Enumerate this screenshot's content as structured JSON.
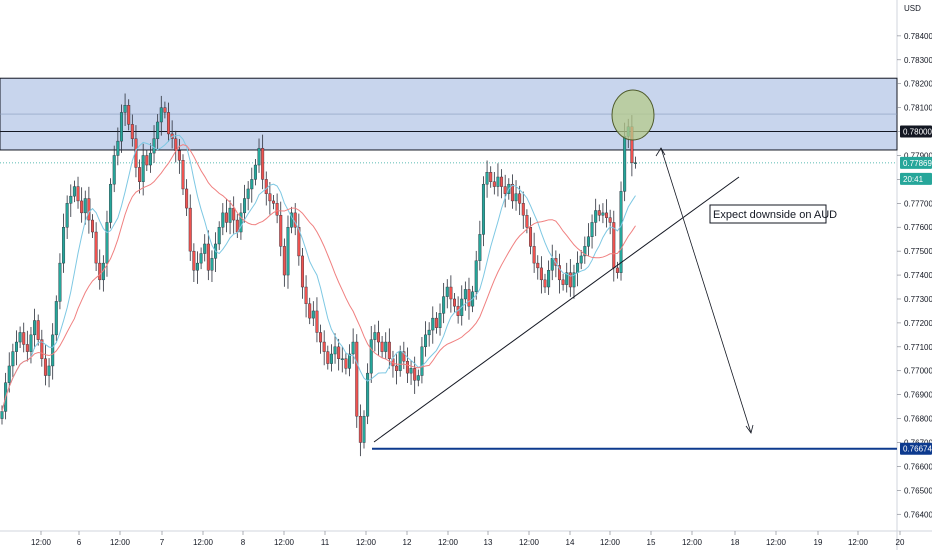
{
  "chart_data": {
    "type": "candlestick",
    "title": "",
    "currency": "USD",
    "y_ticks": [
      "0.78400",
      "0.78300",
      "0.78200",
      "0.78100",
      "0.78000",
      "0.77900",
      "0.77800",
      "0.77700",
      "0.77600",
      "0.77500",
      "0.77400",
      "0.77300",
      "0.77200",
      "0.77100",
      "0.77000",
      "0.76900",
      "0.76800",
      "0.76700",
      "0.76600",
      "0.76500",
      "0.76400"
    ],
    "y_tick_values": [
      0.784,
      0.783,
      0.782,
      0.781,
      0.78,
      0.779,
      0.778,
      0.777,
      0.776,
      0.775,
      0.774,
      0.773,
      0.772,
      0.771,
      0.77,
      0.769,
      0.768,
      0.767,
      0.766,
      0.765,
      0.764
    ],
    "ylim": [
      0.7633,
      0.7855
    ],
    "x_ticks": [
      "12:00",
      "6",
      "12:00",
      "7",
      "12:00",
      "8",
      "12:00",
      "11",
      "12:00",
      "12",
      "12:00",
      "13",
      "12:00",
      "14",
      "12:00",
      "15",
      "12:00",
      "18",
      "12:00",
      "19",
      "12:00",
      "20"
    ],
    "resistance_zone": {
      "top": 0.78223,
      "bottom": 0.77923
    },
    "level_labels": [
      {
        "name": "level-0.78000",
        "value": 0.78,
        "text": "0.78000",
        "bg": "#131722",
        "fg": "#ffffff"
      },
      {
        "name": "current-price",
        "value": 0.77869,
        "text": "0.77869",
        "bg": "#26a69a",
        "fg": "#ffffff"
      },
      {
        "name": "countdown",
        "value": 0.77802,
        "text": "20:41",
        "bg": "#26a69a",
        "fg": "#ffffff"
      },
      {
        "name": "level-0.76674",
        "value": 0.76674,
        "text": "0.76674",
        "bg": "#0d3a8e",
        "fg": "#ffffff"
      }
    ],
    "price_top_label": "0.78400",
    "currency_label": "USD",
    "support_level": 0.76674,
    "annotation": "Expect downside on AUD",
    "colors": {
      "up": "#26a69a",
      "down": "#ef5350",
      "ma_fast": "#7ec8e3",
      "ma_slow": "#f08080",
      "zone": "#c5d3ec",
      "support": "#0d3a8e"
    },
    "closes": [
      0.7683,
      0.7695,
      0.7702,
      0.7708,
      0.7712,
      0.7716,
      0.7711,
      0.7708,
      0.7715,
      0.7721,
      0.7713,
      0.7705,
      0.7698,
      0.7702,
      0.7715,
      0.7729,
      0.7745,
      0.776,
      0.777,
      0.7773,
      0.7777,
      0.7771,
      0.7766,
      0.7772,
      0.7763,
      0.7758,
      0.7745,
      0.7738,
      0.7745,
      0.7762,
      0.7778,
      0.779,
      0.7796,
      0.7808,
      0.7811,
      0.7803,
      0.7797,
      0.7785,
      0.7779,
      0.779,
      0.7786,
      0.7791,
      0.7797,
      0.7804,
      0.781,
      0.7808,
      0.7799,
      0.7797,
      0.7792,
      0.7788,
      0.7776,
      0.7768,
      0.775,
      0.7742,
      0.7745,
      0.7749,
      0.7753,
      0.7742,
      0.7747,
      0.7753,
      0.776,
      0.7766,
      0.7762,
      0.7768,
      0.7763,
      0.7758,
      0.7766,
      0.7772,
      0.7776,
      0.778,
      0.7786,
      0.7793,
      0.778,
      0.7774,
      0.7771,
      0.777,
      0.7765,
      0.7752,
      0.774,
      0.776,
      0.7766,
      0.776,
      0.7748,
      0.7735,
      0.7728,
      0.7722,
      0.7725,
      0.7716,
      0.7712,
      0.7708,
      0.7703,
      0.7707,
      0.771,
      0.7705,
      0.7705,
      0.7701,
      0.7707,
      0.7712,
      0.7681,
      0.767,
      0.7681,
      0.7699,
      0.7713,
      0.7716,
      0.7712,
      0.7708,
      0.7712,
      0.7705,
      0.7702,
      0.77,
      0.7708,
      0.7704,
      0.7699,
      0.7701,
      0.7696,
      0.7698,
      0.771,
      0.7715,
      0.7717,
      0.7722,
      0.7718,
      0.7724,
      0.7731,
      0.7735,
      0.773,
      0.7727,
      0.7723,
      0.773,
      0.7734,
      0.7727,
      0.7733,
      0.7746,
      0.7757,
      0.7778,
      0.7783,
      0.7779,
      0.7777,
      0.7781,
      0.7777,
      0.7774,
      0.7778,
      0.7771,
      0.7774,
      0.777,
      0.7765,
      0.776,
      0.7752,
      0.7745,
      0.7743,
      0.7738,
      0.7735,
      0.7742,
      0.7747,
      0.7744,
      0.7738,
      0.7736,
      0.7741,
      0.7735,
      0.7741,
      0.7745,
      0.7748,
      0.7752,
      0.7756,
      0.7762,
      0.7767,
      0.7765,
      0.7766,
      0.7764,
      0.7762,
      0.7743,
      0.7741,
      0.7775,
      0.7798,
      0.7802,
      0.7787,
      0.7787
    ],
    "note": "closes are approximate 1-hour closes read off the price axis"
  }
}
